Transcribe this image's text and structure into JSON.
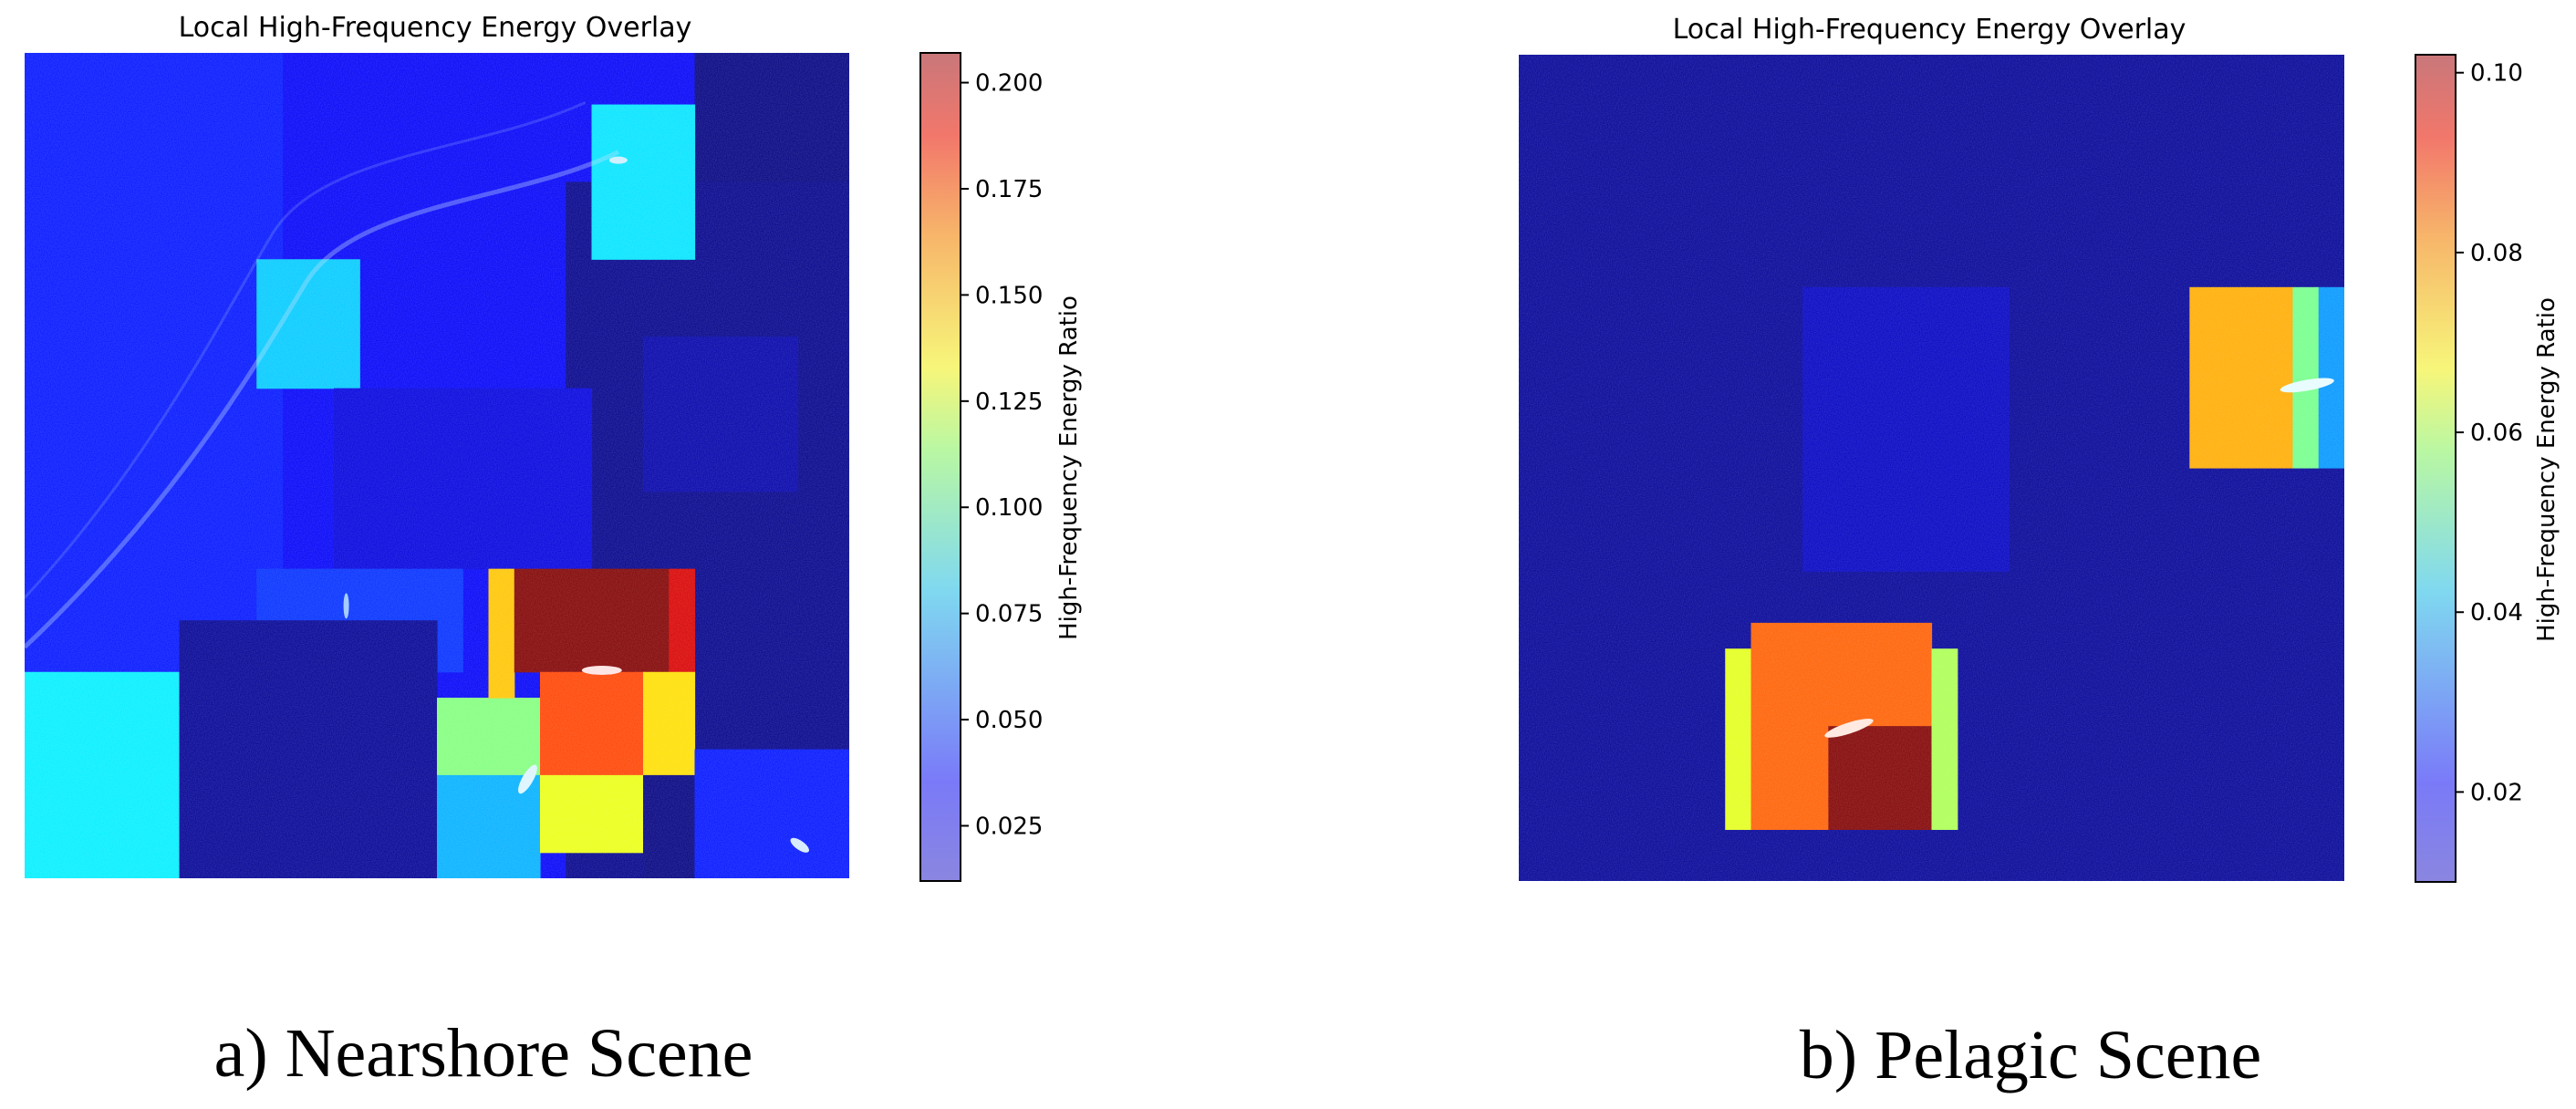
{
  "chart_data": [
    {
      "type": "heatmap",
      "title": "Local High-Frequency Energy Overlay",
      "caption": "a) Nearshore Scene",
      "colorbar": {
        "label": "High-Frequency Energy Ratio",
        "colormap": "jet",
        "range": [
          0.012,
          0.207
        ],
        "ticks": [
          "0.025",
          "0.050",
          "0.075",
          "0.100",
          "0.125",
          "0.150",
          "0.175",
          "0.200"
        ]
      },
      "background_level": 0.035,
      "grid_size": 32,
      "regions": [
        {
          "cells": [
            0,
            0,
            32,
            32
          ],
          "value": 0.035
        },
        {
          "cells": [
            26,
            0,
            32,
            32
          ],
          "value": 0.012
        },
        {
          "cells": [
            21,
            5,
            32,
            32
          ],
          "value": 0.014
        },
        {
          "cells": [
            0,
            0,
            10,
            24
          ],
          "value": 0.04
        },
        {
          "cells": [
            22,
            2,
            26,
            8
          ],
          "value": 0.08
        },
        {
          "cells": [
            9,
            8,
            13,
            13
          ],
          "value": 0.075
        },
        {
          "cells": [
            12,
            13,
            22,
            20
          ],
          "value": 0.03
        },
        {
          "cells": [
            24,
            11,
            30,
            17
          ],
          "value": 0.02
        },
        {
          "cells": [
            9,
            20,
            17,
            24
          ],
          "value": 0.045
        },
        {
          "cells": [
            0,
            24,
            6,
            32
          ],
          "value": 0.082
        },
        {
          "cells": [
            6,
            22,
            16,
            32
          ],
          "value": 0.016
        },
        {
          "cells": [
            16,
            25,
            20,
            30
          ],
          "value": 0.11
        },
        {
          "cells": [
            16,
            28,
            20,
            32
          ],
          "value": 0.07
        },
        {
          "cells": [
            18,
            20,
            19,
            25
          ],
          "value": 0.145
        },
        {
          "cells": [
            19,
            20,
            25,
            24
          ],
          "value": 0.207
        },
        {
          "cells": [
            25,
            20,
            26,
            24
          ],
          "value": 0.19
        },
        {
          "cells": [
            20,
            24,
            24,
            28
          ],
          "value": 0.17
        },
        {
          "cells": [
            24,
            24,
            26,
            28
          ],
          "value": 0.14
        },
        {
          "cells": [
            20,
            28,
            24,
            31
          ],
          "value": 0.13
        },
        {
          "cells": [
            24,
            28,
            26,
            32
          ],
          "value": 0.012
        },
        {
          "cells": [
            26,
            27,
            32,
            32
          ],
          "value": 0.04
        }
      ]
    },
    {
      "type": "heatmap",
      "title": "Local High-Frequency Energy Overlay",
      "caption": "b) Pelagic Scene",
      "colorbar": {
        "label": "High-Frequency Energy Ratio",
        "colormap": "jet",
        "range": [
          0.01,
          0.102
        ],
        "ticks": [
          "0.02",
          "0.04",
          "0.06",
          "0.08",
          "0.10"
        ]
      },
      "background_level": 0.012,
      "grid_size": 32,
      "regions": [
        {
          "cells": [
            0,
            0,
            32,
            32
          ],
          "value": 0.012
        },
        {
          "cells": [
            11,
            9,
            19,
            20
          ],
          "value": 0.016
        },
        {
          "cells": [
            26,
            9,
            30,
            16
          ],
          "value": 0.075
        },
        {
          "cells": [
            30,
            9,
            31,
            16
          ],
          "value": 0.055
        },
        {
          "cells": [
            31,
            9,
            32,
            16
          ],
          "value": 0.035
        },
        {
          "cells": [
            8,
            23,
            9,
            30
          ],
          "value": 0.065
        },
        {
          "cells": [
            9,
            22,
            16,
            26
          ],
          "value": 0.082
        },
        {
          "cells": [
            9,
            26,
            12,
            30
          ],
          "value": 0.082
        },
        {
          "cells": [
            12,
            26,
            16,
            30
          ],
          "value": 0.102
        },
        {
          "cells": [
            16,
            23,
            17,
            30
          ],
          "value": 0.06
        }
      ]
    }
  ]
}
